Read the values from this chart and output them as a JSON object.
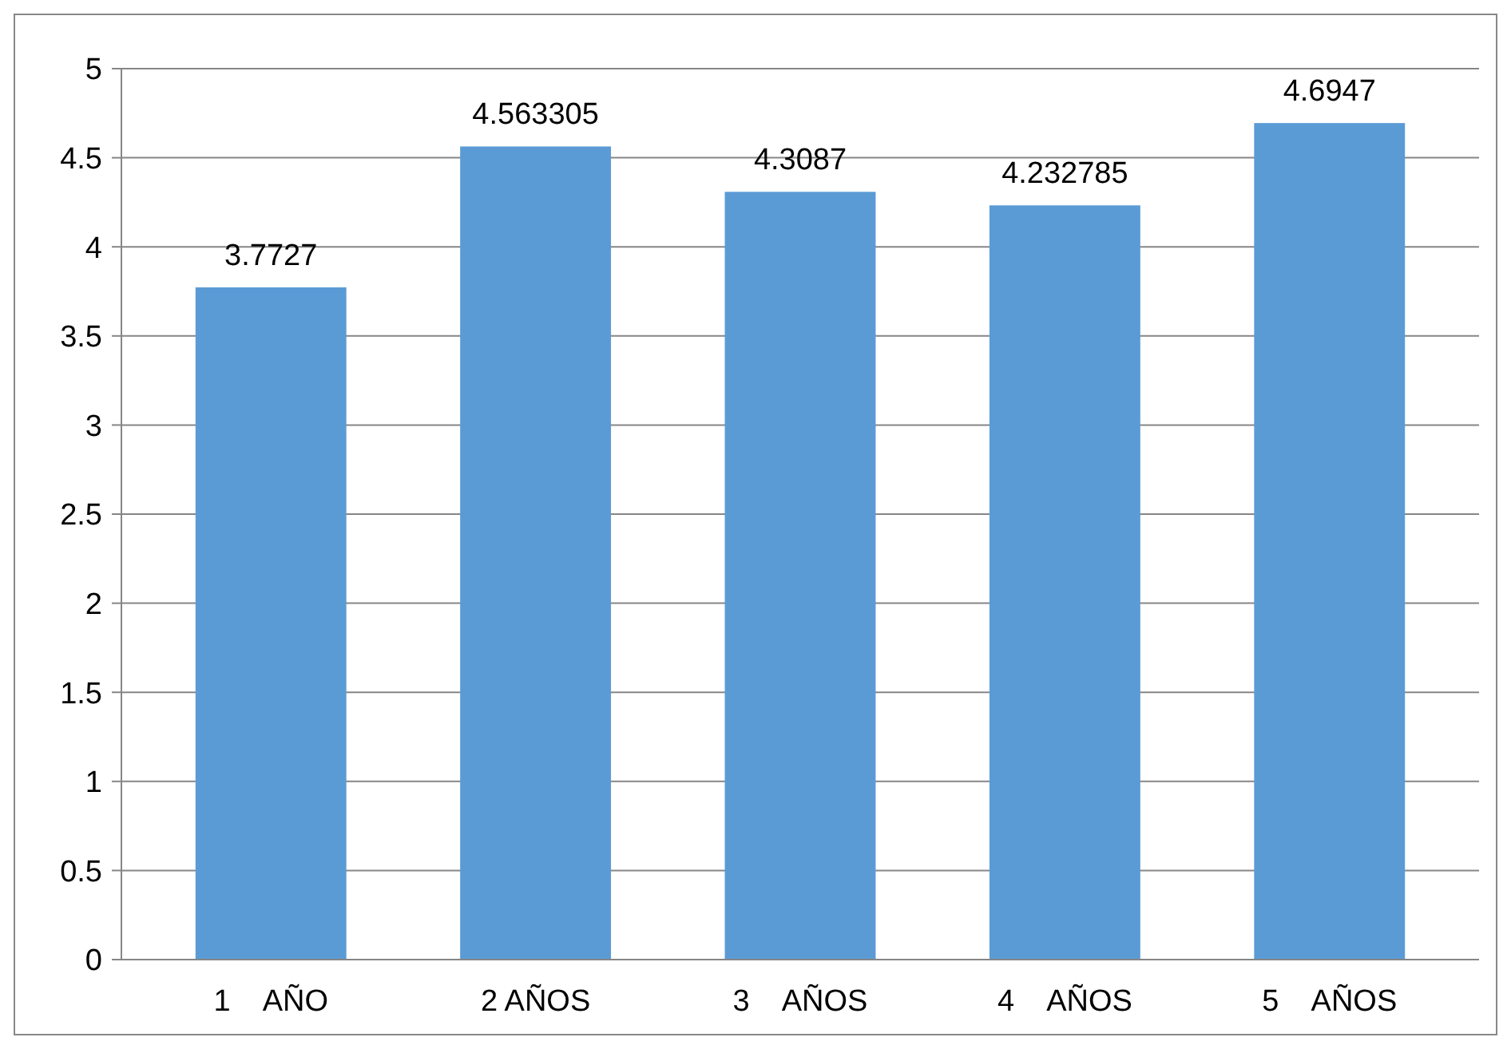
{
  "chart_data": {
    "type": "bar",
    "categories": [
      "1    AÑO",
      "2 AÑOS",
      "3    AÑOS",
      "4    AÑOS",
      "5    AÑOS"
    ],
    "values": [
      3.7727,
      4.563305,
      4.3087,
      4.232785,
      4.6947
    ],
    "color": "#5b9bd5",
    "ylim": [
      0,
      5
    ],
    "yticks": [
      0,
      0.5,
      1,
      1.5,
      2,
      2.5,
      3,
      3.5,
      4,
      4.5,
      5
    ],
    "grid": "y",
    "data_labels": true
  }
}
